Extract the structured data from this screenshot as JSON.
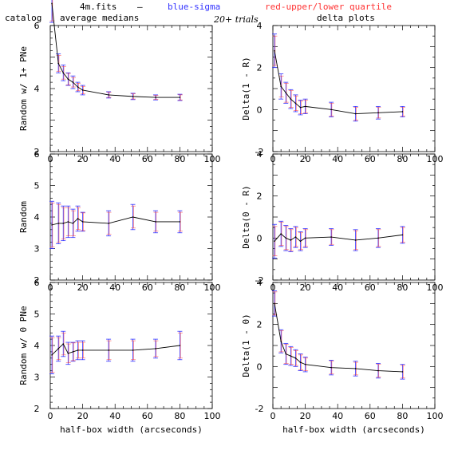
{
  "header": {
    "file": "4m.fits",
    "dash": "–",
    "blue_legend": "blue-sigma",
    "red_legend": "red-upper/lower quartile",
    "catalog": "catalog",
    "avg": "average medians",
    "trials": "20+ trials",
    "delta": "delta plots"
  },
  "colors": {
    "line": "#000000",
    "sigma": "#3333ff",
    "quartile": "#ff3333"
  },
  "chart_data": [
    {
      "type": "line",
      "ylabel": "Random w/ 1+ PNe",
      "xlabel": "",
      "xlim": [
        0,
        100
      ],
      "ylim": [
        2,
        6
      ],
      "grid": false,
      "xticks": [
        "0",
        "20",
        "40",
        "60",
        "80",
        "100"
      ],
      "yticks": [
        "2",
        "4",
        "6"
      ],
      "x": [
        1,
        5,
        8,
        11,
        14,
        17,
        20,
        36,
        51,
        65,
        80
      ],
      "y": [
        6.7,
        4.8,
        4.5,
        4.3,
        4.2,
        4.05,
        3.95,
        3.8,
        3.75,
        3.72,
        3.72
      ],
      "err_sigma": [
        0.6,
        0.3,
        0.25,
        0.2,
        0.2,
        0.15,
        0.15,
        0.1,
        0.1,
        0.08,
        0.1
      ],
      "err_quart": [
        0.55,
        0.25,
        0.2,
        0.18,
        0.15,
        0.12,
        0.12,
        0.08,
        0.08,
        0.06,
        0.08
      ]
    },
    {
      "type": "line",
      "ylabel": "Delta(1 - R)",
      "xlabel": "",
      "xlim": [
        0,
        100
      ],
      "ylim": [
        -2,
        4
      ],
      "grid": false,
      "xticks": [
        "0",
        "20",
        "40",
        "60",
        "80",
        "100"
      ],
      "yticks": [
        "-2",
        "0",
        "2",
        "4"
      ],
      "x": [
        1,
        5,
        8,
        11,
        14,
        17,
        20,
        36,
        51,
        65,
        80
      ],
      "y": [
        2.8,
        1.1,
        0.8,
        0.5,
        0.3,
        0.1,
        0.15,
        0.0,
        -0.2,
        -0.15,
        -0.1
      ],
      "err_sigma": [
        0.8,
        0.6,
        0.5,
        0.45,
        0.4,
        0.35,
        0.35,
        0.35,
        0.35,
        0.3,
        0.25
      ],
      "err_quart": [
        0.7,
        0.5,
        0.45,
        0.4,
        0.35,
        0.3,
        0.3,
        0.3,
        0.3,
        0.25,
        0.2
      ]
    },
    {
      "type": "line",
      "ylabel": "Random",
      "xlabel": "",
      "xlim": [
        0,
        100
      ],
      "ylim": [
        2,
        6
      ],
      "grid": false,
      "xticks": [
        "0",
        "20",
        "40",
        "60",
        "80",
        "100"
      ],
      "yticks": [
        "2",
        "3",
        "4",
        "5",
        "6"
      ],
      "x": [
        1,
        5,
        8,
        11,
        14,
        17,
        20,
        36,
        51,
        65,
        80
      ],
      "y": [
        3.75,
        3.8,
        3.8,
        3.85,
        3.8,
        3.95,
        3.85,
        3.8,
        4.0,
        3.85,
        3.85
      ],
      "err_sigma": [
        0.75,
        0.65,
        0.55,
        0.5,
        0.45,
        0.4,
        0.3,
        0.4,
        0.4,
        0.35,
        0.35
      ],
      "err_quart": [
        0.7,
        0.6,
        0.5,
        0.45,
        0.4,
        0.35,
        0.28,
        0.35,
        0.35,
        0.3,
        0.3
      ]
    },
    {
      "type": "line",
      "ylabel": "Delta(0 - R)",
      "xlabel": "",
      "xlim": [
        0,
        100
      ],
      "ylim": [
        -2,
        4
      ],
      "grid": false,
      "xticks": [
        "0",
        "20",
        "40",
        "60",
        "80",
        "100"
      ],
      "yticks": [
        "-2",
        "0",
        "2",
        "4"
      ],
      "x": [
        1,
        5,
        8,
        11,
        14,
        17,
        20,
        36,
        51,
        65,
        80
      ],
      "y": [
        -0.15,
        0.2,
        0.0,
        -0.1,
        0.05,
        -0.15,
        0.0,
        0.05,
        -0.1,
        0.0,
        0.15
      ],
      "err_sigma": [
        0.8,
        0.6,
        0.6,
        0.55,
        0.5,
        0.45,
        0.45,
        0.4,
        0.5,
        0.45,
        0.4
      ],
      "err_quart": [
        0.7,
        0.55,
        0.55,
        0.5,
        0.45,
        0.4,
        0.4,
        0.35,
        0.45,
        0.4,
        0.35
      ]
    },
    {
      "type": "line",
      "ylabel": "Random w/ 0 PNe",
      "xlabel": "half-box width (arcseconds)",
      "xlim": [
        0,
        100
      ],
      "ylim": [
        2,
        6
      ],
      "grid": false,
      "xticks": [
        "0",
        "20",
        "40",
        "60",
        "80",
        "100"
      ],
      "yticks": [
        "2",
        "3",
        "4",
        "5",
        "6"
      ],
      "x": [
        1,
        5,
        8,
        11,
        14,
        17,
        20,
        36,
        51,
        65,
        80
      ],
      "y": [
        3.7,
        3.9,
        4.05,
        3.75,
        3.8,
        3.85,
        3.85,
        3.85,
        3.85,
        3.9,
        4.0
      ],
      "err_sigma": [
        0.6,
        0.4,
        0.4,
        0.35,
        0.3,
        0.3,
        0.3,
        0.35,
        0.35,
        0.3,
        0.45
      ],
      "err_quart": [
        0.55,
        0.35,
        0.35,
        0.3,
        0.28,
        0.25,
        0.25,
        0.3,
        0.3,
        0.25,
        0.4
      ]
    },
    {
      "type": "line",
      "ylabel": "Delta(1 - 0)",
      "xlabel": "half-box width (arcseconds)",
      "xlim": [
        0,
        100
      ],
      "ylim": [
        -2,
        4
      ],
      "grid": false,
      "xticks": [
        "0",
        "20",
        "40",
        "60",
        "80",
        "100"
      ],
      "yticks": [
        "-2",
        "0",
        "2",
        "4"
      ],
      "x": [
        1,
        5,
        8,
        11,
        14,
        17,
        20,
        36,
        51,
        65,
        80
      ],
      "y": [
        3.0,
        1.2,
        0.6,
        0.5,
        0.4,
        0.2,
        0.1,
        -0.05,
        -0.1,
        -0.2,
        -0.25
      ],
      "err_sigma": [
        0.6,
        0.55,
        0.5,
        0.45,
        0.4,
        0.4,
        0.35,
        0.35,
        0.35,
        0.35,
        0.35
      ],
      "err_quart": [
        0.55,
        0.5,
        0.45,
        0.4,
        0.35,
        0.35,
        0.3,
        0.3,
        0.3,
        0.3,
        0.3
      ]
    }
  ]
}
